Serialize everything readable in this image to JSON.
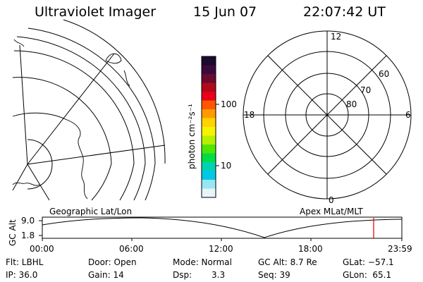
{
  "header": {
    "instrument": "Ultraviolet Imager",
    "date": "15 Jun 07",
    "time": "22:07:42 UT"
  },
  "colorbar": {
    "unit_label": "photon cm⁻²s⁻¹",
    "tick_labels": [
      "100",
      "10"
    ],
    "colors": [
      "#1a0a2e",
      "#3b0a3c",
      "#6a0a2e",
      "#b00a1a",
      "#e8001a",
      "#ff5500",
      "#ff9a00",
      "#ffd200",
      "#f4f400",
      "#b4f000",
      "#4ee600",
      "#00dc46",
      "#00d2b4",
      "#00c8e6",
      "#9ae6f0",
      "#e6f5f8"
    ]
  },
  "geographic_map": {
    "caption": "Geographic Lat/Lon"
  },
  "polar_plot": {
    "caption": "Apex MLat/MLT",
    "mlt_labels": [
      "12",
      "18",
      "6",
      "0"
    ],
    "mlat_labels": [
      "60",
      "70",
      "80"
    ]
  },
  "altitude_strip": {
    "axis_label": "GC Alt",
    "y_ticks": [
      "9.0",
      "1.8"
    ],
    "time_ticks": [
      "00:00",
      "06:00",
      "12:00",
      "18:00",
      "23:59"
    ],
    "marker_color": "#dd0000"
  },
  "footer": {
    "filter": "Flt: LBHL",
    "ip": "IP: 36.0",
    "door": "Door: Open",
    "gain": "Gain: 14",
    "mode": "Mode: Normal",
    "dsp_label": "Dsp:",
    "dsp_value": "3.3",
    "gc_alt": "GC Alt: 8.7 Re",
    "seq": "Seq: 39",
    "glat": "GLat: −57.1",
    "glon": "GLon:  65.1"
  }
}
